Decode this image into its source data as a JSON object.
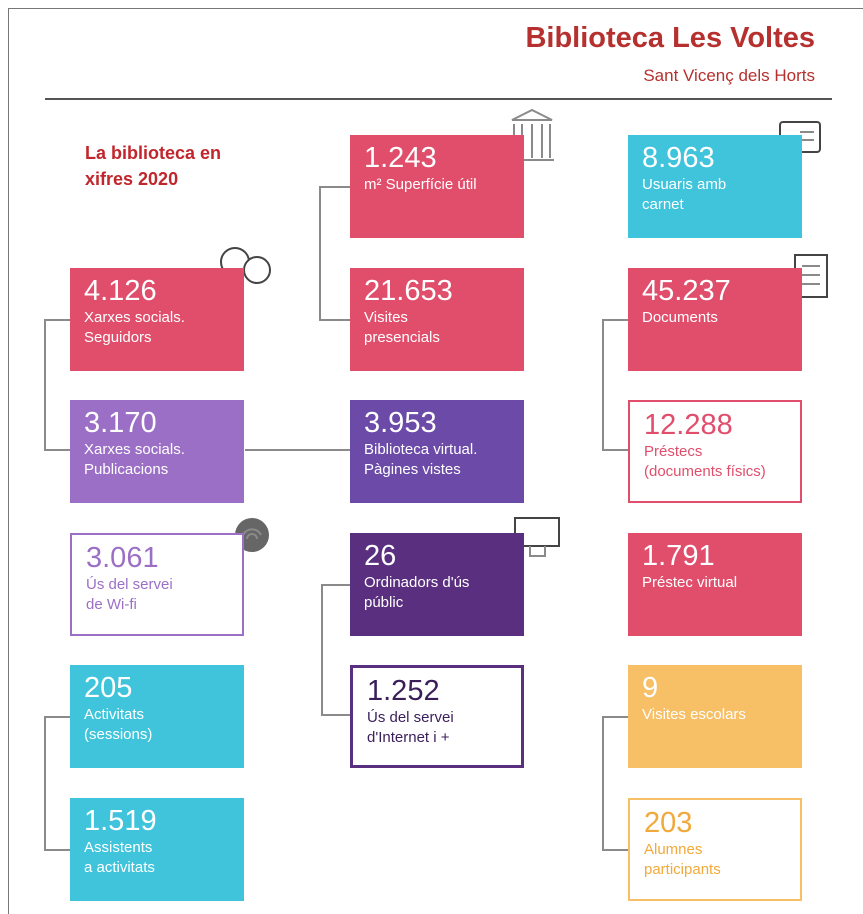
{
  "header": {
    "title": "Biblioteca Les Voltes",
    "subtitle": "Sant Vicenç dels Horts"
  },
  "intro": [
    "La biblioteca en",
    "xifres 2020"
  ],
  "boxes": [
    {
      "value": "1.243",
      "label": [
        "m² Superfície útil"
      ]
    },
    {
      "value": "8.963",
      "label": [
        "Usuaris amb",
        "carnet"
      ]
    },
    {
      "value": "4.126",
      "label": [
        "Xarxes socials.",
        "Seguidors"
      ]
    },
    {
      "value": "21.653",
      "label": [
        "Visites",
        "presencials"
      ]
    },
    {
      "value": "45.237",
      "label": [
        "Documents"
      ]
    },
    {
      "value": "3.170",
      "label": [
        "Xarxes socials.",
        "Publicacions"
      ]
    },
    {
      "value": "3.953",
      "label": [
        "Biblioteca virtual.",
        "Pàgines vistes"
      ]
    },
    {
      "value": "12.288",
      "label": [
        "Préstecs",
        "(documents físics)"
      ]
    },
    {
      "value": "3.061",
      "label": [
        "Ús del servei",
        "de Wi-fi"
      ]
    },
    {
      "value": "26",
      "label": [
        "Ordinadors d'ús",
        "públic"
      ]
    },
    {
      "value": "1.791",
      "label": [
        "Préstec virtual"
      ]
    },
    {
      "value": "205",
      "label": [
        "Activitats",
        "(sessions)"
      ]
    },
    {
      "value": "1.252",
      "label": [
        "Ús del servei",
        "d'Internet i +"
      ]
    },
    {
      "value": "9",
      "label": [
        "Visites escolars"
      ]
    },
    {
      "value": "1.519",
      "label": [
        "Assistents",
        "a activitats"
      ]
    },
    {
      "value": "203",
      "label": [
        "Alumnes",
        "participants"
      ]
    }
  ]
}
